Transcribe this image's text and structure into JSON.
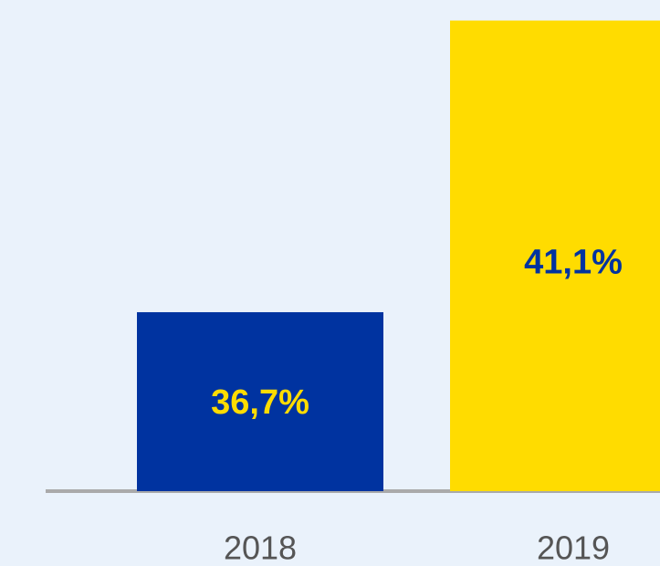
{
  "chart_data": {
    "type": "bar",
    "categories": [
      "2018",
      "2019"
    ],
    "values": [
      36.7,
      41.1
    ],
    "value_labels": [
      "36,7%",
      "41,1%"
    ],
    "colors": [
      "#0033a0",
      "#ffdc00"
    ],
    "label_colors": [
      "#ffdc00",
      "#0033a0"
    ],
    "ylim": [
      34,
      41.3
    ]
  }
}
